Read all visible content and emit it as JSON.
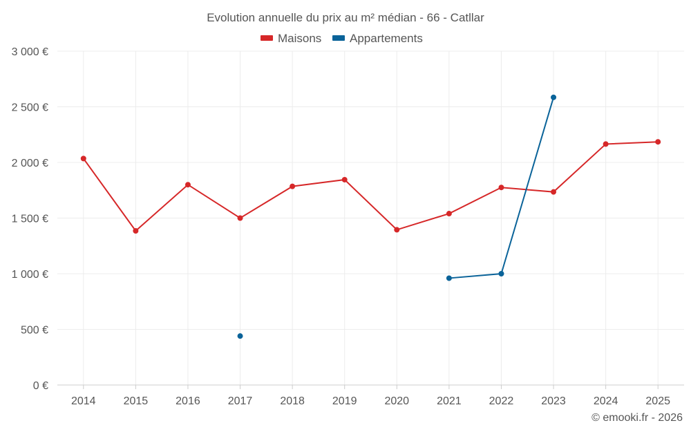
{
  "chart_data": {
    "type": "line",
    "title": "Evolution annuelle du prix au m² médian - 66 - Catllar",
    "categories": [
      "2014",
      "2015",
      "2016",
      "2017",
      "2018",
      "2019",
      "2020",
      "2021",
      "2022",
      "2023",
      "2024",
      "2025"
    ],
    "ylim": [
      0,
      3000
    ],
    "yticks": [
      0,
      500,
      1000,
      1500,
      2000,
      2500,
      3000
    ],
    "ytick_labels": [
      "0 €",
      "500 €",
      "1 000 €",
      "1 500 €",
      "2 000 €",
      "2 500 €",
      "3 000 €"
    ],
    "grid": true,
    "legend_position": "top-center",
    "series": [
      {
        "name": "Maisons",
        "color": "#d62728",
        "values": [
          2035,
          1385,
          1800,
          1500,
          1785,
          1845,
          1395,
          1540,
          1775,
          1735,
          2165,
          2185
        ]
      },
      {
        "name": "Appartements",
        "color": "#0a6399",
        "values": [
          null,
          null,
          null,
          440,
          null,
          null,
          null,
          960,
          1000,
          2585,
          null,
          null
        ]
      }
    ]
  },
  "credit": "© emooki.fr - 2026"
}
